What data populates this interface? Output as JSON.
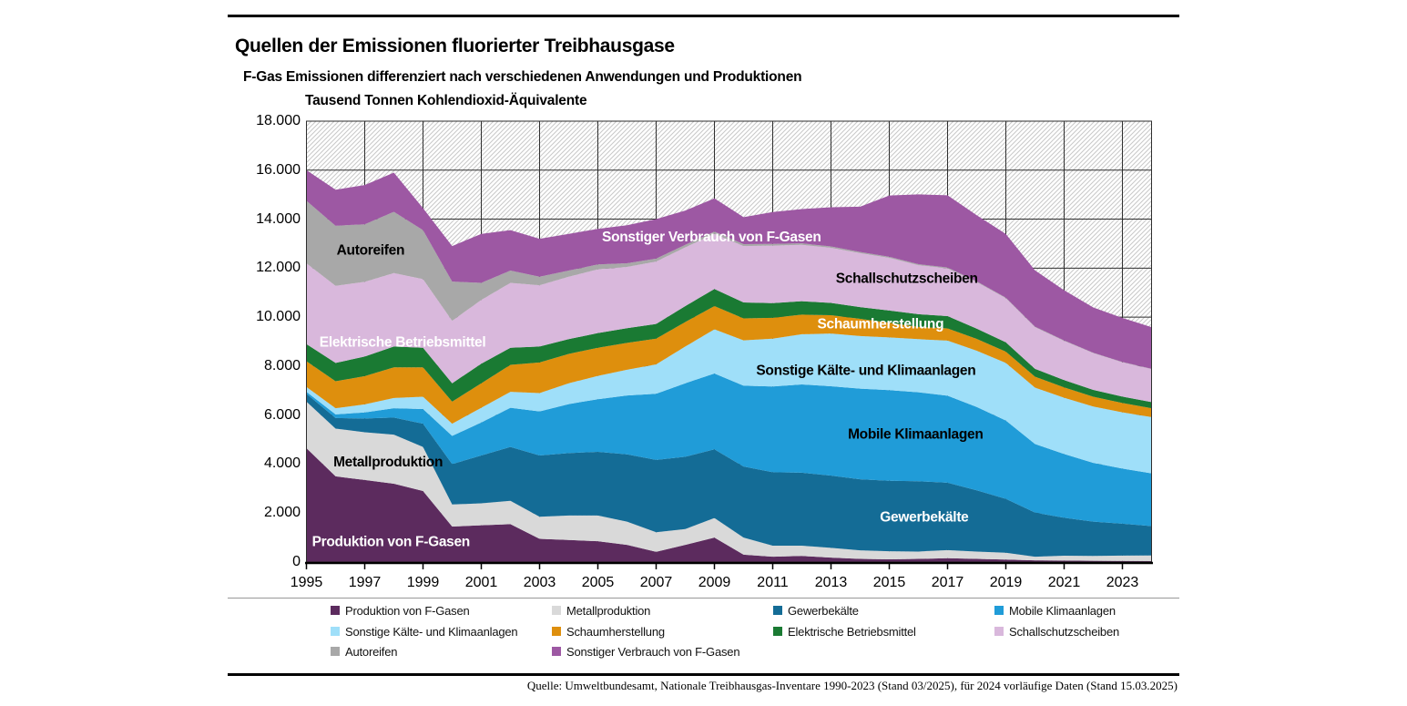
{
  "chart_data": {
    "type": "area",
    "stacked": true,
    "title": "Quellen der Emissionen fluorierter Treibhausgase",
    "subtitle": "F-Gas Emissionen differenziert nach verschiedenen Anwendungen und Produktionen",
    "unit_label": "Tausend Tonnen Kohlendioxid-Äquivalente",
    "xlabel": "",
    "ylabel": "Tausend Tonnen Kohlendioxid-Äquivalente",
    "ylim": [
      0,
      18000
    ],
    "grid": true,
    "background_hatch": "diagonal",
    "x": [
      1995,
      1996,
      1997,
      1998,
      1999,
      2000,
      2001,
      2002,
      2003,
      2004,
      2005,
      2006,
      2007,
      2008,
      2009,
      2010,
      2011,
      2012,
      2013,
      2014,
      2015,
      2016,
      2017,
      2018,
      2019,
      2020,
      2021,
      2022,
      2023,
      2024
    ],
    "x_ticks": [
      1995,
      1997,
      1999,
      2001,
      2003,
      2005,
      2007,
      2009,
      2011,
      2013,
      2015,
      2017,
      2019,
      2021,
      2023
    ],
    "x_tick_labels": [
      "1995",
      "1997",
      "1999",
      "2001",
      "2003",
      "2005",
      "2007",
      "2009",
      "2011",
      "2013",
      "2015",
      "2017",
      "2019",
      "2021",
      "2023"
    ],
    "y_ticks": [
      0,
      2000,
      4000,
      6000,
      8000,
      10000,
      12000,
      14000,
      16000,
      18000
    ],
    "y_tick_labels": [
      "0",
      "2.000",
      "4.000",
      "6.000",
      "8.000",
      "10.000",
      "12.000",
      "14.000",
      "16.000",
      "18.000"
    ],
    "series": [
      {
        "name": "Produktion von F-Gasen",
        "color": "#5C2B5E",
        "values": [
          4650,
          3500,
          3350,
          3200,
          2900,
          1450,
          1500,
          1550,
          950,
          900,
          850,
          700,
          420,
          700,
          1000,
          300,
          220,
          250,
          180,
          130,
          110,
          130,
          160,
          130,
          100,
          70,
          60,
          50,
          45,
          40
        ]
      },
      {
        "name": "Metallproduktion",
        "color": "#D9D9D9",
        "values": [
          1900,
          1950,
          1950,
          2000,
          1800,
          900,
          900,
          950,
          900,
          1000,
          1050,
          950,
          800,
          650,
          800,
          700,
          450,
          420,
          400,
          350,
          330,
          300,
          330,
          300,
          280,
          150,
          200,
          200,
          220,
          230
        ]
      },
      {
        "name": "Gewerbekälte",
        "color": "#146C96",
        "values": [
          320,
          430,
          560,
          700,
          950,
          1650,
          1950,
          2200,
          2500,
          2550,
          2600,
          2750,
          2950,
          2950,
          2800,
          2900,
          3000,
          2980,
          2950,
          2900,
          2880,
          2870,
          2750,
          2500,
          2200,
          1800,
          1550,
          1400,
          1300,
          1200
        ]
      },
      {
        "name": "Mobile Klimaanlagen",
        "color": "#209CD8",
        "values": [
          80,
          150,
          250,
          380,
          600,
          1150,
          1350,
          1600,
          1800,
          2000,
          2150,
          2400,
          2700,
          3000,
          3100,
          3300,
          3500,
          3600,
          3650,
          3700,
          3700,
          3630,
          3550,
          3400,
          3200,
          2800,
          2600,
          2400,
          2250,
          2150
        ]
      },
      {
        "name": "Sonstige Kälte- und Klimaanlagen",
        "color": "#9FDFF9",
        "values": [
          200,
          250,
          330,
          420,
          500,
          500,
          600,
          650,
          750,
          850,
          950,
          1050,
          1200,
          1500,
          1800,
          1850,
          1950,
          2050,
          2150,
          2150,
          2150,
          2170,
          2250,
          2300,
          2350,
          2300,
          2300,
          2300,
          2300,
          2300
        ]
      },
      {
        "name": "Schaumherstellung",
        "color": "#DE8F0D",
        "values": [
          1050,
          1100,
          1150,
          1250,
          1200,
          900,
          1000,
          1100,
          1250,
          1200,
          1150,
          1100,
          1050,
          1000,
          950,
          900,
          850,
          800,
          750,
          700,
          600,
          500,
          500,
          480,
          460,
          450,
          420,
          400,
          380,
          360
        ]
      },
      {
        "name": "Elektrische Betriebsmittel",
        "color": "#1A7A33",
        "values": [
          700,
          750,
          800,
          850,
          800,
          750,
          800,
          700,
          650,
          600,
          600,
          600,
          600,
          650,
          700,
          650,
          600,
          550,
          500,
          480,
          500,
          520,
          500,
          420,
          380,
          320,
          300,
          280,
          260,
          250
        ]
      },
      {
        "name": "Schallschutzscheiben",
        "color": "#D9B8DC",
        "values": [
          3300,
          3150,
          3050,
          3000,
          2800,
          2550,
          2600,
          2650,
          2500,
          2550,
          2600,
          2500,
          2550,
          2400,
          2250,
          2300,
          2350,
          2300,
          2250,
          2200,
          2150,
          2000,
          1950,
          1900,
          1800,
          1700,
          1600,
          1500,
          1400,
          1350
        ]
      },
      {
        "name": "Autoreifen",
        "color": "#A8A8A8",
        "values": [
          2550,
          2450,
          2350,
          2500,
          2000,
          1600,
          700,
          500,
          350,
          250,
          200,
          150,
          120,
          100,
          90,
          80,
          70,
          60,
          55,
          50,
          45,
          40,
          35,
          30,
          25,
          20,
          18,
          15,
          12,
          10
        ]
      },
      {
        "name": "Sonstiger Verbrauch von F-Gasen",
        "color": "#9D58A3",
        "values": [
          1250,
          1470,
          1600,
          1600,
          900,
          1450,
          2000,
          1650,
          1550,
          1500,
          1450,
          1550,
          1610,
          1400,
          1360,
          1100,
          1300,
          1400,
          1600,
          1850,
          2500,
          2850,
          2950,
          2700,
          2600,
          2300,
          2050,
          1850,
          1800,
          1700
        ]
      }
    ],
    "area_labels": [
      {
        "text": "Produktion von F-Gasen",
        "year": 1997.9,
        "value": 800,
        "color": "#ffffff"
      },
      {
        "text": "Metallproduktion",
        "year": 1997.8,
        "value": 4050,
        "color": "#000000"
      },
      {
        "text": "Gewerbekälte",
        "year": 2016.2,
        "value": 1800,
        "color": "#ffffff"
      },
      {
        "text": "Mobile Klimaanlagen",
        "year": 2015.9,
        "value": 5200,
        "color": "#000000"
      },
      {
        "text": "Sonstige Kälte- und Klimaanlagen",
        "year": 2014.2,
        "value": 7800,
        "color": "#000000"
      },
      {
        "text": "Schaumherstellung",
        "year": 2014.7,
        "value": 9700,
        "color": "#ffffff"
      },
      {
        "text": "Elektrische Betriebsmittel",
        "year": 1998.3,
        "value": 8950,
        "color": "#ffffff"
      },
      {
        "text": "Schallschutzscheiben",
        "year": 2015.6,
        "value": 11550,
        "color": "#000000"
      },
      {
        "text": "Autoreifen",
        "year": 1997.2,
        "value": 12700,
        "color": "#000000"
      },
      {
        "text": "Sonstiger Verbrauch von F-Gasen",
        "year": 2008.9,
        "value": 13250,
        "color": "#ffffff"
      }
    ]
  },
  "legend": {
    "items": [
      {
        "label": "Produktion von F-Gasen",
        "color": "#5C2B5E"
      },
      {
        "label": "Metallproduktion",
        "color": "#D9D9D9"
      },
      {
        "label": "Gewerbekälte",
        "color": "#146C96"
      },
      {
        "label": "Mobile Klimaanlagen",
        "color": "#209CD8"
      },
      {
        "label": "Sonstige Kälte- und Klimaanlagen",
        "color": "#9FDFF9"
      },
      {
        "label": "Schaumherstellung",
        "color": "#DE8F0D"
      },
      {
        "label": "Elektrische Betriebsmittel",
        "color": "#1A7A33"
      },
      {
        "label": "Schallschutzscheiben",
        "color": "#D9B8DC"
      },
      {
        "label": "Autoreifen",
        "color": "#A8A8A8"
      },
      {
        "label": "Sonstiger Verbrauch von F-Gasen",
        "color": "#9D58A3"
      }
    ]
  },
  "source_note": "Quelle: Umweltbundesamt, Nationale Treibhausgas-Inventare 1990-2023 (Stand 03/2025), für 2024 vorläufige Daten (Stand 15.03.2025)"
}
